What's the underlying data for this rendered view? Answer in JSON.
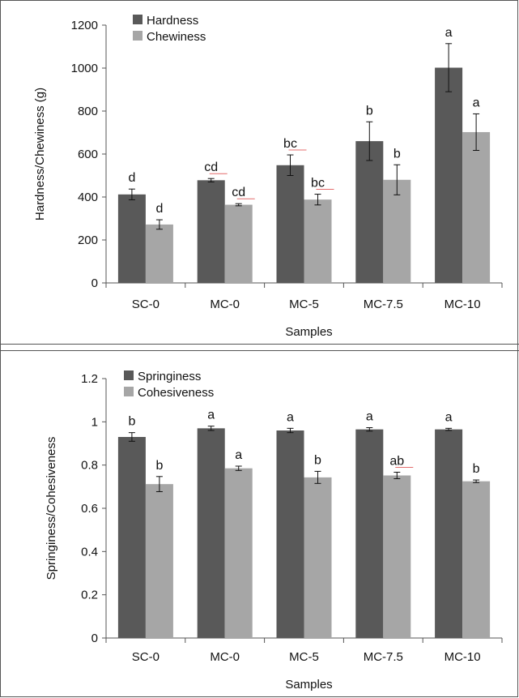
{
  "colors": {
    "series1": "#595959",
    "series2": "#a6a6a6",
    "axis": "#555555",
    "frame": "#555555",
    "sig_underline": "#e46c6c"
  },
  "chart_data": [
    {
      "type": "bar",
      "categories": [
        "SC-0",
        "MC-0",
        "MC-5",
        "MC-7.5",
        "MC-10"
      ],
      "xlabel": "Samples",
      "ylabel": "Hardness/Chewiness (g)",
      "ylim": [
        0,
        1200
      ],
      "yticks": [
        "0",
        "200",
        "400",
        "600",
        "800",
        "1000",
        "1200"
      ],
      "grid": false,
      "legend_position": "top-left",
      "series": [
        {
          "name": "Hardness",
          "values": [
            412,
            478,
            548,
            660,
            1002
          ],
          "errors": [
            25,
            8,
            48,
            90,
            112
          ],
          "letters": [
            "d",
            "cd",
            "bc",
            "b",
            "a"
          ]
        },
        {
          "name": "Chewiness",
          "values": [
            272,
            364,
            388,
            480,
            702
          ],
          "errors": [
            22,
            5,
            25,
            70,
            85
          ],
          "letters": [
            "d",
            "cd",
            "bc",
            "b",
            "a"
          ]
        }
      ]
    },
    {
      "type": "bar",
      "categories": [
        "SC-0",
        "MC-0",
        "MC-5",
        "MC-7.5",
        "MC-10"
      ],
      "xlabel": "Samples",
      "ylabel": "Springiness/Cohesiveness",
      "ylim": [
        0,
        1.2
      ],
      "yticks": [
        "0",
        "0.2",
        "0.4",
        "0.6",
        "0.8",
        "1",
        "1.2"
      ],
      "grid": false,
      "legend_position": "top-left",
      "series": [
        {
          "name": "Springiness",
          "values": [
            0.93,
            0.97,
            0.96,
            0.965,
            0.965
          ],
          "errors": [
            0.02,
            0.01,
            0.01,
            0.008,
            0.005
          ],
          "letters": [
            "b",
            "a",
            "a",
            "a",
            "a"
          ]
        },
        {
          "name": "Cohesiveness",
          "values": [
            0.712,
            0.785,
            0.743,
            0.752,
            0.725
          ],
          "errors": [
            0.035,
            0.01,
            0.028,
            0.015,
            0.006
          ],
          "letters": [
            "b",
            "a",
            "b",
            "ab",
            "b"
          ]
        }
      ]
    }
  ]
}
